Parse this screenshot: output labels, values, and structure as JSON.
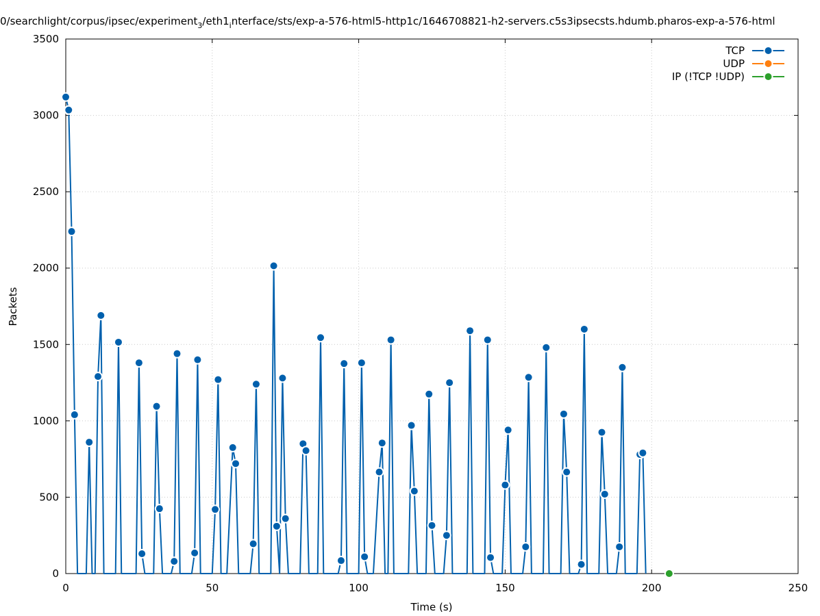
{
  "chart_data": {
    "type": "line",
    "title": "0/searchlight/corpus/ipsec/experiment_3/eth1_interface/sts/exp-a-576-html5-http1c/1646708821-h2-servers.c5s3ipsecsts.hdumb.pharos-exp-a-576-html",
    "title_parts": {
      "before": "0/searchlight/corpus/ipsec/experiment",
      "sub1": "3",
      "middle": "/eth1",
      "sub2": "i",
      "after": "nterface/sts/exp-a-576-html5-http1c/1646708821-h2-servers.c5s3ipsecsts.hdumb.pharos-exp-a-576-html"
    },
    "xlabel": "Time (s)",
    "ylabel": "Packets",
    "xlim": [
      0,
      250
    ],
    "ylim": [
      0,
      3500
    ],
    "xticks": [
      0,
      50,
      100,
      150,
      200,
      250
    ],
    "yticks": [
      0,
      500,
      1000,
      1500,
      2000,
      2500,
      3000,
      3500
    ],
    "grid": true,
    "legend_position": "top-right",
    "series": [
      {
        "name": "TCP",
        "color": "#0060ad",
        "points": [
          [
            0,
            3120
          ],
          [
            1,
            3035
          ],
          [
            2,
            2240
          ],
          [
            3,
            1040
          ],
          [
            4,
            0
          ],
          [
            7,
            0
          ],
          [
            8,
            860
          ],
          [
            9,
            0
          ],
          [
            10,
            0
          ],
          [
            11,
            1290
          ],
          [
            12,
            1690
          ],
          [
            13,
            0
          ],
          [
            17,
            0
          ],
          [
            18,
            1515
          ],
          [
            19,
            0
          ],
          [
            24,
            0
          ],
          [
            25,
            1380
          ],
          [
            26,
            130
          ],
          [
            27,
            0
          ],
          [
            30,
            0
          ],
          [
            31,
            1095
          ],
          [
            32,
            425
          ],
          [
            33,
            0
          ],
          [
            36,
            0
          ],
          [
            37,
            80
          ],
          [
            38,
            1440
          ],
          [
            39,
            0
          ],
          [
            43,
            0
          ],
          [
            44,
            135
          ],
          [
            45,
            1400
          ],
          [
            46,
            0
          ],
          [
            50,
            0
          ],
          [
            51,
            420
          ],
          [
            52,
            1270
          ],
          [
            53,
            0
          ],
          [
            55,
            0
          ],
          [
            57,
            825
          ],
          [
            58,
            720
          ],
          [
            59,
            0
          ],
          [
            63,
            0
          ],
          [
            64,
            195
          ],
          [
            65,
            1240
          ],
          [
            66,
            0
          ],
          [
            70,
            0
          ],
          [
            71,
            2015
          ],
          [
            72,
            310
          ],
          [
            73,
            0
          ],
          [
            74,
            1280
          ],
          [
            75,
            360
          ],
          [
            76,
            0
          ],
          [
            80,
            0
          ],
          [
            81,
            850
          ],
          [
            82,
            805
          ],
          [
            83,
            0
          ],
          [
            86,
            0
          ],
          [
            87,
            1545
          ],
          [
            88,
            0
          ],
          [
            93,
            0
          ],
          [
            94,
            85
          ],
          [
            95,
            1375
          ],
          [
            96,
            0
          ],
          [
            100,
            0
          ],
          [
            101,
            1380
          ],
          [
            102,
            110
          ],
          [
            103,
            0
          ],
          [
            105,
            0
          ],
          [
            107,
            665
          ],
          [
            108,
            855
          ],
          [
            109,
            0
          ],
          [
            110,
            0
          ],
          [
            111,
            1530
          ],
          [
            112,
            0
          ],
          [
            117,
            0
          ],
          [
            118,
            970
          ],
          [
            119,
            540
          ],
          [
            120,
            0
          ],
          [
            123,
            0
          ],
          [
            124,
            1175
          ],
          [
            125,
            315
          ],
          [
            126,
            0
          ],
          [
            129,
            0
          ],
          [
            130,
            250
          ],
          [
            131,
            1250
          ],
          [
            132,
            0
          ],
          [
            137,
            0
          ],
          [
            138,
            1590
          ],
          [
            139,
            0
          ],
          [
            143,
            0
          ],
          [
            144,
            1530
          ],
          [
            145,
            105
          ],
          [
            146,
            0
          ],
          [
            149,
            0
          ],
          [
            150,
            580
          ],
          [
            151,
            940
          ],
          [
            152,
            0
          ],
          [
            156,
            0
          ],
          [
            157,
            175
          ],
          [
            158,
            1285
          ],
          [
            159,
            0
          ],
          [
            163,
            0
          ],
          [
            164,
            1480
          ],
          [
            165,
            0
          ],
          [
            169,
            0
          ],
          [
            170,
            1045
          ],
          [
            171,
            665
          ],
          [
            172,
            0
          ],
          [
            175,
            0
          ],
          [
            176,
            60
          ],
          [
            177,
            1600
          ],
          [
            178,
            0
          ],
          [
            182,
            0
          ],
          [
            183,
            925
          ],
          [
            184,
            520
          ],
          [
            185,
            0
          ],
          [
            188,
            0
          ],
          [
            189,
            175
          ],
          [
            190,
            1350
          ],
          [
            191,
            0
          ],
          [
            195,
            0
          ],
          [
            196,
            780
          ],
          [
            197,
            790
          ],
          [
            198,
            0
          ]
        ]
      },
      {
        "name": "UDP",
        "color": "#ff7f0e",
        "points": []
      },
      {
        "name": "IP (!TCP  !UDP)",
        "color": "#2ca02c",
        "points": [
          [
            206,
            0
          ]
        ]
      }
    ]
  }
}
